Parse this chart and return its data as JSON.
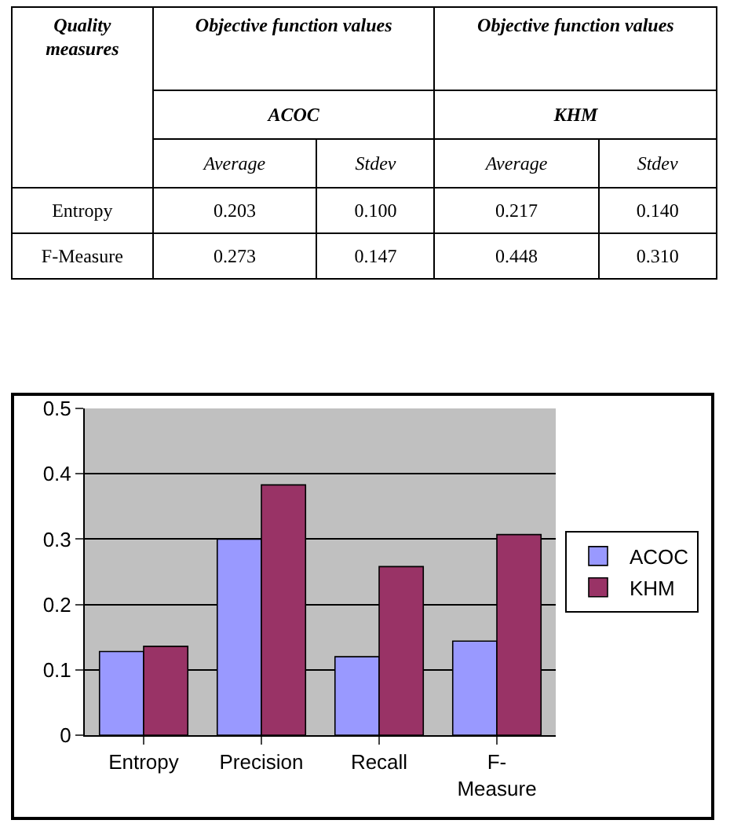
{
  "chart_data": [
    {
      "type": "other",
      "ylabel": "Quality measures",
      "annotations": [
        "Objective function values",
        "ACOC",
        "Objective function values",
        "KHM"
      ],
      "categories": [
        "Average",
        "Stdev",
        "Average",
        "Stdev"
      ],
      "y_categories": [
        "Entropy",
        "F-Measure"
      ],
      "cell_labels": [
        [
          "0.203",
          "0.100",
          "0.217",
          "0.140"
        ],
        [
          "0.273",
          "0.147",
          "0.448",
          "0.310"
        ]
      ]
    },
    {
      "type": "bar",
      "categories": [
        "Entropy",
        "Precision",
        "Recall",
        "F-Measure"
      ],
      "series": [
        {
          "name": "ACOC",
          "color": "#9999ff",
          "values": [
            0.128,
            0.3,
            0.12,
            0.144
          ]
        },
        {
          "name": "KHM",
          "color": "#993366",
          "values": [
            0.136,
            0.383,
            0.258,
            0.307
          ]
        }
      ],
      "ylim": [
        0,
        0.5
      ],
      "yticks": [
        0,
        0.1,
        0.2,
        0.3,
        0.4,
        0.5
      ],
      "grid": "y",
      "legend": "right"
    }
  ]
}
